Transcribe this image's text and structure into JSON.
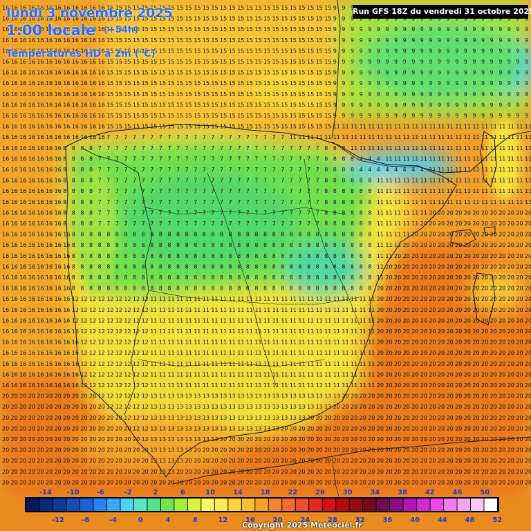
{
  "header": {
    "date_line": "lundi 3 novembre 2025",
    "time_line": "1:00 locale",
    "lead_time": "(+54h)",
    "parameter": "Températures HD à 2m (°C)"
  },
  "run_label": "Run GFS 18Z du vendredi 31 octobre 2025",
  "copyright": "Copyright 2025 Meteociel.fr",
  "legend": {
    "top_labels": [
      "-14",
      "-10",
      "-6",
      "-2",
      "2",
      "6",
      "10",
      "14",
      "18",
      "22",
      "26",
      "30",
      "34",
      "38",
      "42",
      "46",
      "50"
    ],
    "bottom_labels": [
      "-12",
      "-8",
      "-4",
      "0",
      "4",
      "8",
      "12",
      "16",
      "20",
      "24",
      "28",
      "32",
      "36",
      "40",
      "44",
      "48",
      "52"
    ],
    "colors": [
      "#08165a",
      "#0a2a78",
      "#0d3a96",
      "#1a4bb6",
      "#1e5fd8",
      "#2583f0",
      "#36a9f7",
      "#4fd0f5",
      "#5ce6c6",
      "#52e38a",
      "#6fe550",
      "#a8ec3a",
      "#dcf33c",
      "#fbf764",
      "#fcea52",
      "#fbd43c",
      "#f9bd2f",
      "#f6a12a",
      "#f3862a",
      "#ef6c2c",
      "#ea4e2a",
      "#e32b1f",
      "#d50e14",
      "#b60a10",
      "#940a0e",
      "#760a1a",
      "#6e0c4e",
      "#8e0d86",
      "#b414b4",
      "#d42ad6",
      "#ea48e6",
      "#f37bf0",
      "#f6a4f2",
      "#f9c8f6",
      "#ffffff"
    ]
  },
  "grid_values": {
    "atlantic": "16",
    "france": "15",
    "biscay_coast": "11",
    "north_spain": "7",
    "central_plateau": "8",
    "meseta_south": "11",
    "andalusia": "13",
    "mediterranean": "20",
    "pyrenees": "4",
    "alps_zone": "9",
    "portugal": "12",
    "south_sea": "20"
  },
  "colors": {
    "sea_warm": "#e98b1f",
    "sea_mid": "#f5a42a",
    "land_yellow": "#f3e13a",
    "land_green": "#8fe04a",
    "land_cool": "#52d86a",
    "mountain_cyan": "#4fd0f5",
    "title_blue": "#2a6cf0"
  }
}
